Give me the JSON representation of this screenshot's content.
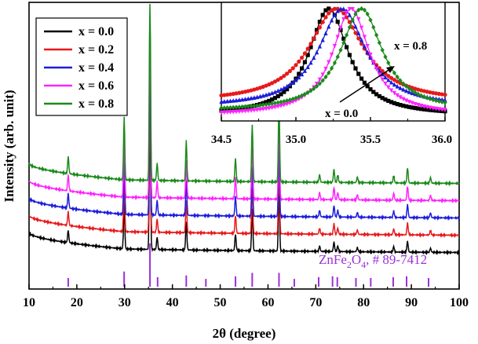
{
  "chart_data": {
    "type": "line",
    "xlabel": "2θ (degree)",
    "ylabel": "Intensity (arb. unit)",
    "xlim": [
      10,
      100
    ],
    "x_ticks": [
      "10",
      "20",
      "30",
      "40",
      "50",
      "60",
      "70",
      "80",
      "90",
      "100"
    ],
    "colors": {
      "x = 0.0": "#000000",
      "x = 0.2": "#e8191b",
      "x = 0.4": "#1c1cdc",
      "x = 0.6": "#ff22ff",
      "x = 0.8": "#1b8a1b",
      "reference": "#9b30d9"
    },
    "series": [
      {
        "name": "x = 0.0",
        "color": "#000000",
        "offset": 0
      },
      {
        "name": "x = 0.2",
        "color": "#e8191b",
        "offset": 1
      },
      {
        "name": "x = 0.4",
        "color": "#1c1cdc",
        "offset": 2
      },
      {
        "name": "x = 0.6",
        "color": "#ff22ff",
        "offset": 3
      },
      {
        "name": "x = 0.8",
        "color": "#1b8a1b",
        "offset": 4
      }
    ],
    "peaks": [
      {
        "two_theta": 18.2,
        "rel": 0.09
      },
      {
        "two_theta": 29.9,
        "rel": 0.33
      },
      {
        "two_theta": 35.3,
        "rel": 1.0
      },
      {
        "two_theta": 36.8,
        "rel": 0.09
      },
      {
        "two_theta": 42.9,
        "rel": 0.21
      },
      {
        "two_theta": 53.2,
        "rel": 0.12
      },
      {
        "two_theta": 56.7,
        "rel": 0.3
      },
      {
        "two_theta": 62.3,
        "rel": 0.42
      },
      {
        "two_theta": 70.8,
        "rel": 0.04
      },
      {
        "two_theta": 73.8,
        "rel": 0.07
      },
      {
        "two_theta": 74.6,
        "rel": 0.04
      },
      {
        "two_theta": 78.7,
        "rel": 0.03
      },
      {
        "two_theta": 86.3,
        "rel": 0.04
      },
      {
        "two_theta": 89.2,
        "rel": 0.08
      },
      {
        "two_theta": 94.0,
        "rel": 0.03
      }
    ],
    "reference": {
      "label_prefix": "ZnFe",
      "label_sub1": "2",
      "label_mid": "O",
      "label_sub2": "4",
      "label_suffix": ", # 89-7412",
      "lines": [
        {
          "two_theta": 18.2,
          "rel": 0.2
        },
        {
          "two_theta": 29.9,
          "rel": 0.35
        },
        {
          "two_theta": 35.3,
          "rel": 1.0
        },
        {
          "two_theta": 36.9,
          "rel": 0.22
        },
        {
          "two_theta": 42.9,
          "rel": 0.26
        },
        {
          "two_theta": 47.0,
          "rel": 0.18
        },
        {
          "two_theta": 53.2,
          "rel": 0.24
        },
        {
          "two_theta": 56.7,
          "rel": 0.32
        },
        {
          "two_theta": 62.3,
          "rel": 0.32
        },
        {
          "two_theta": 65.5,
          "rel": 0.18
        },
        {
          "two_theta": 70.6,
          "rel": 0.22
        },
        {
          "two_theta": 73.5,
          "rel": 0.24
        },
        {
          "two_theta": 74.5,
          "rel": 0.22
        },
        {
          "two_theta": 78.4,
          "rel": 0.2
        },
        {
          "two_theta": 81.5,
          "rel": 0.2
        },
        {
          "two_theta": 86.2,
          "rel": 0.22
        },
        {
          "two_theta": 89.0,
          "rel": 0.24
        },
        {
          "two_theta": 93.6,
          "rel": 0.2
        }
      ]
    },
    "inset": {
      "xlim": [
        34.5,
        36.0
      ],
      "x_ticks": [
        "34.5",
        "35.0",
        "35.5",
        "36.0"
      ],
      "peak_centers": [
        35.22,
        35.27,
        35.31,
        35.37,
        35.44
      ],
      "arrow_start_label": "x = 0.0",
      "arrow_end_label": "x = 0.8"
    },
    "legend_position": "top-left"
  }
}
